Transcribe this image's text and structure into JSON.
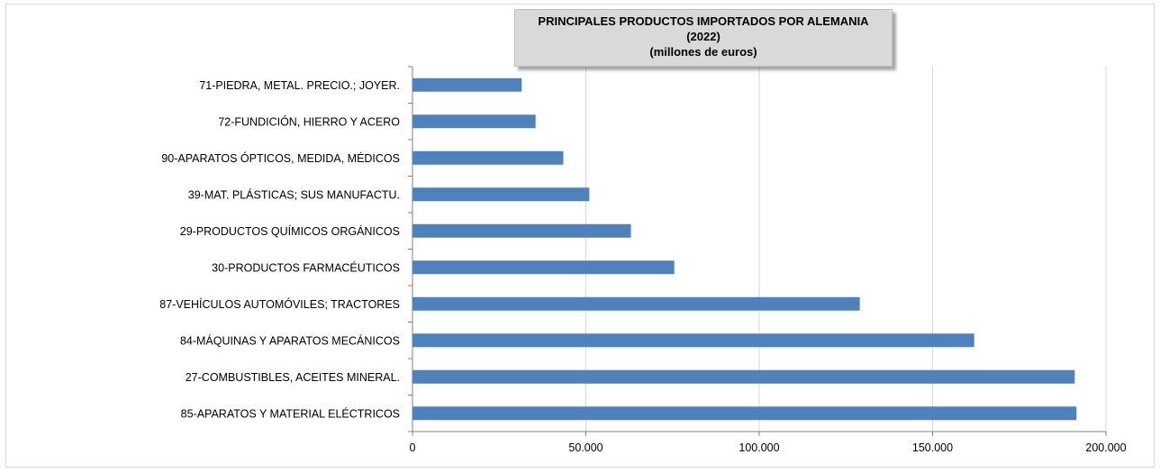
{
  "chart_data": {
    "type": "bar",
    "orientation": "horizontal",
    "title": "PRINCIPALES PRODUCTOS IMPORTADOS POR ALEMANIA",
    "subtitle": "(2022)",
    "unit_label": "(millones de euros)",
    "categories": [
      "71-PIEDRA, METAL. PRECIO.; JOYER.",
      "72-FUNDICIÓN, HIERRO Y ACERO",
      "90-APARATOS ÓPTICOS, MEDIDA, MÉDICOS",
      "39-MAT. PLÁSTICAS; SUS MANUFACTU.",
      "29-PRODUCTOS QUÍMICOS ORGÁNICOS",
      "30-PRODUCTOS FARMACÉUTICOS",
      "87-VEHÍCULOS AUTOMÓVILES; TRACTORES",
      "84-MÁQUINAS Y APARATOS MECÁNICOS",
      "27-COMBUSTIBLES, ACEITES MINERAL.",
      "85-APARATOS Y MATERIAL ELÉCTRICOS"
    ],
    "values": [
      31500,
      35500,
      43500,
      51000,
      63000,
      75500,
      129000,
      162000,
      191000,
      191500
    ],
    "xlim": [
      0,
      200000
    ],
    "xticks": [
      0,
      50000,
      100000,
      150000,
      200000
    ],
    "xtick_labels": [
      "0",
      "50.000",
      "100.000",
      "150.000",
      "200.000"
    ],
    "grid": "vertical",
    "legend": "none",
    "bar_color": "#4f81bd",
    "grid_color": "#d9d9d9"
  }
}
